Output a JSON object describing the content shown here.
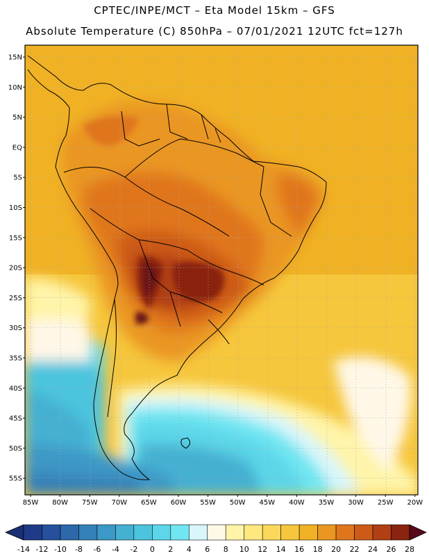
{
  "header": {
    "line1": "CPTEC/INPE/MCT –  Eta Model 15km – GFS",
    "line2": "Absolute Temperature (C) 850hPa – 07/01/2021 12UTC fct=127h"
  },
  "map": {
    "lat_labels": [
      "15N",
      "10N",
      "5N",
      "EQ",
      "5S",
      "10S",
      "15S",
      "20S",
      "25S",
      "30S",
      "35S",
      "40S",
      "45S",
      "50S",
      "55S"
    ],
    "lon_labels": [
      "85W",
      "80W",
      "75W",
      "70W",
      "65W",
      "60W",
      "55W",
      "50W",
      "45W",
      "40W",
      "35W",
      "30W",
      "25W",
      "20W"
    ]
  },
  "colorbar": {
    "ticks": [
      "-14",
      "-12",
      "-10",
      "-8",
      "-6",
      "-4",
      "-2",
      "0",
      "2",
      "4",
      "6",
      "8",
      "10",
      "12",
      "14",
      "16",
      "18",
      "20",
      "22",
      "24",
      "26",
      "28"
    ],
    "colors": [
      "#203a8a",
      "#26509c",
      "#2c68aa",
      "#3480b8",
      "#3c98c6",
      "#44b0d2",
      "#4cc4de",
      "#5cd6e8",
      "#70e6f2",
      "#d8f6fb",
      "#fff8e8",
      "#fff4a8",
      "#ffe880",
      "#fbd85c",
      "#f6c63c",
      "#f0b224",
      "#ea9620",
      "#e0761c",
      "#cc5a18",
      "#b04014",
      "#8a2410",
      "#6a1414"
    ],
    "left_arrow_color": "#1a2e72",
    "right_arrow_color": "#5a0a1a"
  }
}
